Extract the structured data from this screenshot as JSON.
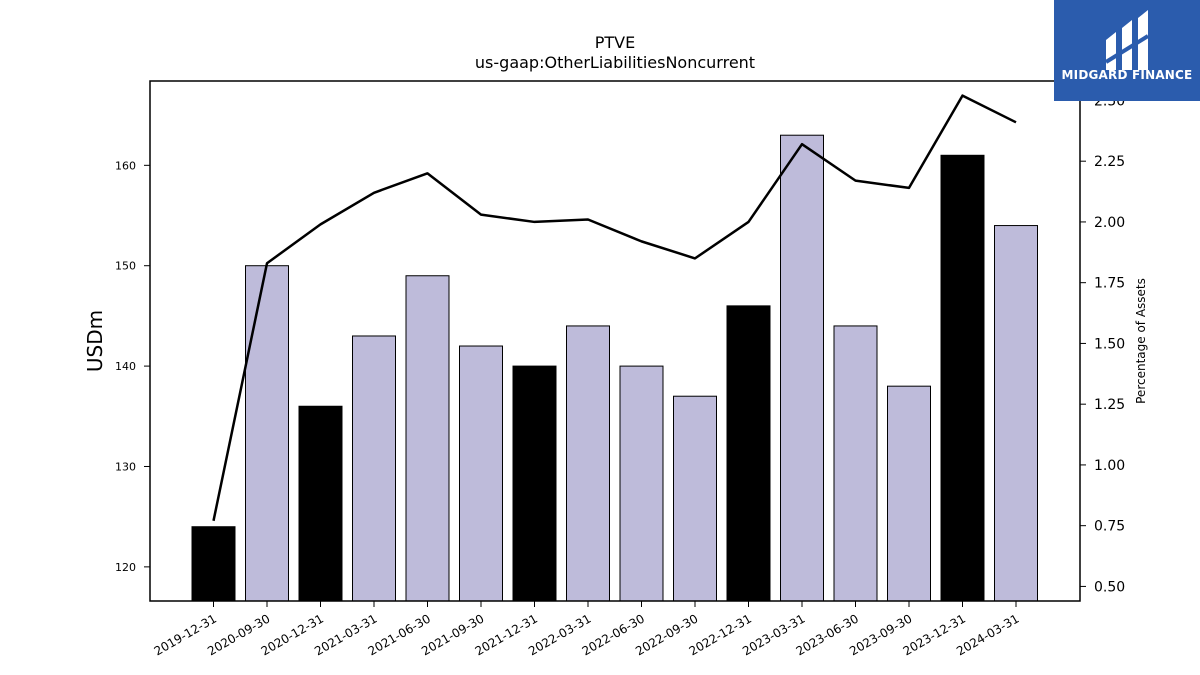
{
  "chart_data": {
    "type": "bar",
    "title": "PTVE",
    "subtitle": "us-gaap:OtherLiabilitiesNoncurrent",
    "ylabel": "USDm",
    "y2label": "Percentage of Assets",
    "categories": [
      "2019-12-31",
      "2020-09-30",
      "2020-12-31",
      "2021-03-31",
      "2021-06-30",
      "2021-09-30",
      "2021-12-31",
      "2022-03-31",
      "2022-06-30",
      "2022-09-30",
      "2022-12-31",
      "2023-03-31",
      "2023-06-30",
      "2023-09-30",
      "2023-12-31",
      "2024-03-31"
    ],
    "values": [
      124,
      150,
      136,
      143,
      149,
      142,
      140,
      144,
      140,
      137,
      146,
      163,
      144,
      138,
      161,
      154
    ],
    "highlight": [
      true,
      false,
      true,
      false,
      false,
      false,
      true,
      false,
      false,
      false,
      true,
      false,
      false,
      false,
      true,
      false
    ],
    "line_series": {
      "axis": "right",
      "values": [
        0.77,
        1.83,
        1.99,
        2.12,
        2.2,
        2.03,
        2.0,
        2.01,
        1.92,
        1.85,
        2.0,
        2.32,
        2.17,
        2.14,
        2.52,
        2.41
      ]
    },
    "ylim": [
      116.6,
      168.4
    ],
    "y2lim": [
      0.44,
      2.58
    ],
    "yticks": [
      120,
      130,
      140,
      150,
      160
    ],
    "y2ticks": [
      "0.50",
      "0.75",
      "1.00",
      "1.25",
      "1.50",
      "1.75",
      "2.00",
      "2.25",
      "2.50"
    ],
    "colors": {
      "bar": "#bebbda",
      "highlight": "#000000",
      "line": "#000000"
    },
    "grid": false
  },
  "logo": {
    "name": "MIDGARD FINANCE",
    "background": "#2b5cad"
  }
}
